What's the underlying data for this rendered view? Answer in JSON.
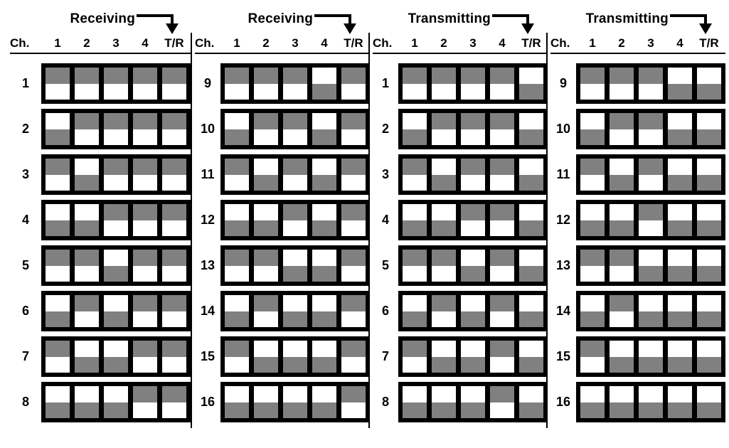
{
  "figure": {
    "ch_header": "Ch.",
    "col_headers": [
      "1",
      "2",
      "3",
      "4",
      "T/R"
    ],
    "colors": {
      "frame": "#000000",
      "switch_gray": "#808080",
      "background": "#ffffff"
    },
    "legend": {
      "up_means": "switch up (gray at top)",
      "down_means": "switch down (gray at bottom)"
    },
    "groups": [
      {
        "id": "receiving-ch-1-8",
        "title": "Receiving",
        "rows": [
          {
            "ch": "1",
            "switches": [
              "up",
              "up",
              "up",
              "up",
              "up"
            ]
          },
          {
            "ch": "2",
            "switches": [
              "down",
              "up",
              "up",
              "up",
              "up"
            ]
          },
          {
            "ch": "3",
            "switches": [
              "up",
              "down",
              "up",
              "up",
              "up"
            ]
          },
          {
            "ch": "4",
            "switches": [
              "down",
              "down",
              "up",
              "up",
              "up"
            ]
          },
          {
            "ch": "5",
            "switches": [
              "up",
              "up",
              "down",
              "up",
              "up"
            ]
          },
          {
            "ch": "6",
            "switches": [
              "down",
              "up",
              "down",
              "up",
              "up"
            ]
          },
          {
            "ch": "7",
            "switches": [
              "up",
              "down",
              "down",
              "up",
              "up"
            ]
          },
          {
            "ch": "8",
            "switches": [
              "down",
              "down",
              "down",
              "up",
              "up"
            ]
          }
        ]
      },
      {
        "id": "receiving-ch-9-16",
        "title": "Receiving",
        "rows": [
          {
            "ch": "9",
            "switches": [
              "up",
              "up",
              "up",
              "down",
              "up"
            ]
          },
          {
            "ch": "10",
            "switches": [
              "down",
              "up",
              "up",
              "down",
              "up"
            ]
          },
          {
            "ch": "11",
            "switches": [
              "up",
              "down",
              "up",
              "down",
              "up"
            ]
          },
          {
            "ch": "12",
            "switches": [
              "down",
              "down",
              "up",
              "down",
              "up"
            ]
          },
          {
            "ch": "13",
            "switches": [
              "up",
              "up",
              "down",
              "down",
              "up"
            ]
          },
          {
            "ch": "14",
            "switches": [
              "down",
              "up",
              "down",
              "down",
              "up"
            ]
          },
          {
            "ch": "15",
            "switches": [
              "up",
              "down",
              "down",
              "down",
              "up"
            ]
          },
          {
            "ch": "16",
            "switches": [
              "down",
              "down",
              "down",
              "down",
              "up"
            ]
          }
        ]
      },
      {
        "id": "transmitting-ch-1-8",
        "title": "Transmitting",
        "rows": [
          {
            "ch": "1",
            "switches": [
              "up",
              "up",
              "up",
              "up",
              "down"
            ]
          },
          {
            "ch": "2",
            "switches": [
              "down",
              "up",
              "up",
              "up",
              "down"
            ]
          },
          {
            "ch": "3",
            "switches": [
              "up",
              "down",
              "up",
              "up",
              "down"
            ]
          },
          {
            "ch": "4",
            "switches": [
              "down",
              "down",
              "up",
              "up",
              "down"
            ]
          },
          {
            "ch": "5",
            "switches": [
              "up",
              "up",
              "down",
              "up",
              "down"
            ]
          },
          {
            "ch": "6",
            "switches": [
              "down",
              "up",
              "down",
              "up",
              "down"
            ]
          },
          {
            "ch": "7",
            "switches": [
              "up",
              "down",
              "down",
              "up",
              "down"
            ]
          },
          {
            "ch": "8",
            "switches": [
              "down",
              "down",
              "down",
              "up",
              "down"
            ]
          }
        ]
      },
      {
        "id": "transmitting-ch-9-16",
        "title": "Transmitting",
        "rows": [
          {
            "ch": "9",
            "switches": [
              "up",
              "up",
              "up",
              "down",
              "down"
            ]
          },
          {
            "ch": "10",
            "switches": [
              "down",
              "up",
              "up",
              "down",
              "down"
            ]
          },
          {
            "ch": "11",
            "switches": [
              "up",
              "down",
              "up",
              "down",
              "down"
            ]
          },
          {
            "ch": "12",
            "switches": [
              "down",
              "down",
              "up",
              "down",
              "down"
            ]
          },
          {
            "ch": "13",
            "switches": [
              "up",
              "up",
              "down",
              "down",
              "down"
            ]
          },
          {
            "ch": "14",
            "switches": [
              "down",
              "up",
              "down",
              "down",
              "down"
            ]
          },
          {
            "ch": "15",
            "switches": [
              "up",
              "down",
              "down",
              "down",
              "down"
            ]
          },
          {
            "ch": "16",
            "switches": [
              "down",
              "down",
              "down",
              "down",
              "down"
            ]
          }
        ]
      }
    ]
  }
}
